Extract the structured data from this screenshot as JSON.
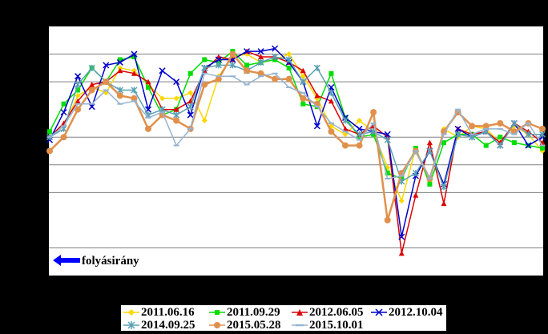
{
  "chart_data": {
    "type": "line",
    "title": "",
    "xlabel": "",
    "ylabel": "",
    "ylim": [
      -9,
      0
    ],
    "grid_y": [
      -1,
      -2,
      -4,
      -5,
      -6,
      -8
    ],
    "x": [
      1,
      2,
      3,
      4,
      5,
      6,
      7,
      8,
      9,
      10,
      11,
      12,
      13,
      14,
      15,
      16,
      17,
      18,
      19,
      20,
      21,
      22,
      23,
      24,
      25,
      26,
      27,
      28,
      29,
      30,
      31,
      32,
      33,
      34,
      35,
      36
    ],
    "series": [
      {
        "name": "2011.06.16",
        "color": "#ffd700",
        "marker": "diamond",
        "values": [
          -4.0,
          -3.6,
          -2.5,
          -2.2,
          -2.4,
          -1.5,
          -1.6,
          -2.1,
          -2.6,
          -2.6,
          -2.4,
          -3.4,
          -1.8,
          -1.1,
          -1.0,
          -1.3,
          -1.2,
          -1.0,
          -1.8,
          -2.6,
          -3.6,
          -3.9,
          -3.4,
          -3.8,
          -5.1,
          -6.3,
          -4.4,
          -5.6,
          -3.7,
          -4.0,
          -3.6,
          -3.7,
          -4.2,
          -3.6,
          -3.9,
          -4.5
        ]
      },
      {
        "name": "2011.09.29",
        "color": "#00dd00",
        "marker": "square",
        "values": [
          -3.8,
          -2.8,
          -2.3,
          -1.5,
          -2.0,
          -1.2,
          -1.1,
          -2.2,
          -3.2,
          -3.0,
          -1.7,
          -1.2,
          -1.3,
          -0.9,
          -1.4,
          -1.3,
          -1.2,
          -1.5,
          -2.8,
          -2.9,
          -1.7,
          -3.3,
          -4.0,
          -3.9,
          -5.3,
          -5.5,
          -4.4,
          -5.7,
          -4.2,
          -3.9,
          -3.9,
          -4.3,
          -4.0,
          -4.2,
          -4.3,
          -4.4
        ]
      },
      {
        "name": "2012.06.05",
        "color": "#dd0000",
        "marker": "triangle",
        "values": [
          -4.0,
          -3.5,
          -2.7,
          -2.1,
          -2.0,
          -1.6,
          -1.7,
          -2.0,
          -3.0,
          -3.0,
          -2.7,
          -1.6,
          -1.1,
          -1.2,
          -0.9,
          -1.1,
          -1.1,
          -1.3,
          -1.6,
          -2.5,
          -2.7,
          -3.7,
          -3.9,
          -3.6,
          -4.0,
          -8.2,
          -6.1,
          -4.2,
          -6.4,
          -3.7,
          -3.9,
          -3.8,
          -4.2,
          -3.5,
          -3.8,
          -4.2
        ]
      },
      {
        "name": "2012.10.04",
        "color": "#0000cc",
        "marker": "x",
        "values": [
          -4.1,
          -3.1,
          -1.8,
          -2.9,
          -1.4,
          -1.3,
          -1.0,
          -3.0,
          -1.6,
          -2.0,
          -3.2,
          -1.5,
          -1.2,
          -1.2,
          -0.9,
          -0.9,
          -0.8,
          -1.3,
          -2.0,
          -3.6,
          -2.2,
          -3.3,
          -3.7,
          -3.8,
          -3.9,
          -7.6,
          -5.4,
          -4.5,
          -5.7,
          -3.7,
          -4.0,
          -3.8,
          -4.3,
          -3.5,
          -4.3,
          -4.0
        ]
      },
      {
        "name": "2014.09.25",
        "color": "#5aa0b4",
        "marker": "star",
        "values": [
          -4.0,
          -3.7,
          -2.1,
          -1.5,
          -2.0,
          -2.3,
          -2.3,
          -3.2,
          -3.0,
          -3.2,
          -2.9,
          -1.5,
          -1.4,
          -1.4,
          -1.6,
          -1.3,
          -1.1,
          -1.2,
          -2.0,
          -1.5,
          -2.4,
          -3.4,
          -3.9,
          -3.8,
          -4.1,
          -5.6,
          -5.3,
          -4.5,
          -5.8,
          -3.9,
          -4.0,
          -3.8,
          -4.3,
          -3.5,
          -3.9,
          -3.9
        ]
      },
      {
        "name": "2015.05.28",
        "color": "#e0904c",
        "marker": "circle",
        "values": [
          -4.5,
          -4.0,
          -3.0,
          -2.3,
          -2.0,
          -2.5,
          -2.6,
          -3.7,
          -3.2,
          -3.4,
          -3.7,
          -2.1,
          -1.9,
          -1.0,
          -1.6,
          -1.7,
          -1.9,
          -1.9,
          -2.6,
          -2.8,
          -3.8,
          -4.3,
          -4.3,
          -3.1,
          -7.0,
          -5.3,
          -4.5,
          -5.5,
          -3.8,
          -3.1,
          -3.6,
          -3.6,
          -3.5,
          -3.8,
          -3.5,
          -3.7
        ]
      },
      {
        "name": "2015.10.01",
        "color": "#96b4d2",
        "marker": "line",
        "values": [
          -4.0,
          -3.6,
          -2.8,
          -2.8,
          -2.3,
          -2.8,
          -2.7,
          -3.3,
          -3.1,
          -4.3,
          -3.7,
          -1.7,
          -1.8,
          -1.8,
          -2.1,
          -1.8,
          -1.7,
          -2.2,
          -2.4,
          -2.9,
          -3.5,
          -3.8,
          -4.1,
          -3.5,
          -5.5,
          -5.4,
          -4.5,
          -5.5,
          -3.9,
          -3.0,
          -3.9,
          -3.7,
          -3.7,
          -3.9,
          -3.5,
          -4.3
        ]
      }
    ],
    "legend_position": "bottom"
  },
  "annotation": {
    "text": "folyásirány",
    "arrow_color": "#0000ff"
  }
}
